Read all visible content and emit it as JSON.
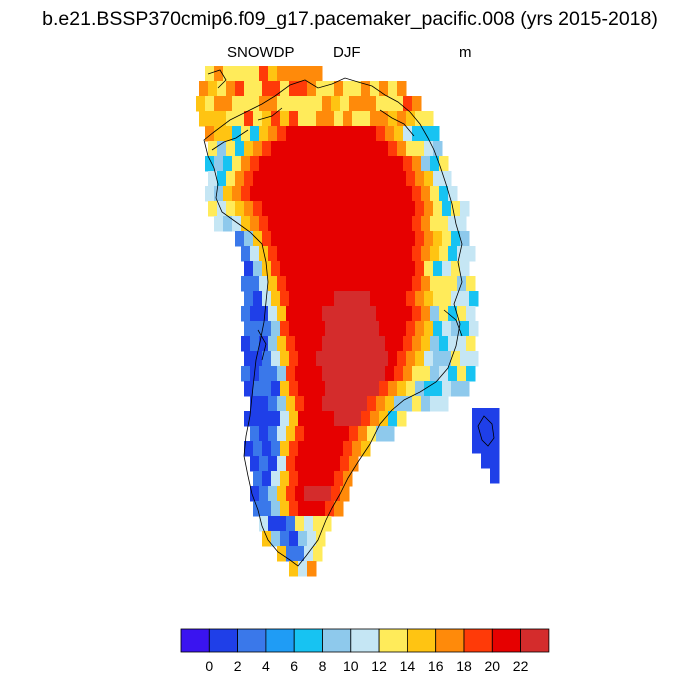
{
  "title": "b.e21.BSSP370cmip6.f09_g17.pacemaker_pacific.008 (yrs 2015-2018)",
  "subtitle": {
    "variable": "SNOWDP",
    "season": "DJF",
    "units": "m"
  },
  "colorbar": {
    "labels": [
      "0",
      "2",
      "4",
      "6",
      "8",
      "10",
      "12",
      "14",
      "16",
      "18",
      "20",
      "22"
    ],
    "colors": [
      "#3a14f0",
      "#1f3fe8",
      "#3a78ea",
      "#1f9cf5",
      "#17c3f2",
      "#8ec9ec",
      "#c5e6f4",
      "#ffeb5a",
      "#ffc412",
      "#ff8a0a",
      "#ff3a08",
      "#e60000",
      "#d42c2c"
    ]
  },
  "map": {
    "region": "Greenland",
    "field": "SNOWDP"
  }
}
